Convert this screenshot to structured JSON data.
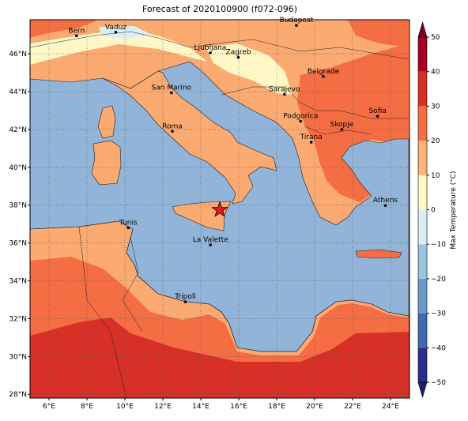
{
  "title": "Forecast of 2020100900 (f072-096)",
  "map": {
    "xlim": [
      5,
      25
    ],
    "ylim": [
      27.8,
      47.8
    ],
    "xticks": [
      {
        "value": 6,
        "label": "6°E"
      },
      {
        "value": 8,
        "label": "8°E"
      },
      {
        "value": 10,
        "label": "10°E"
      },
      {
        "value": 12,
        "label": "12°E"
      },
      {
        "value": 14,
        "label": "14°E"
      },
      {
        "value": 16,
        "label": "16°E"
      },
      {
        "value": 18,
        "label": "18°E"
      },
      {
        "value": 20,
        "label": "20°E"
      },
      {
        "value": 22,
        "label": "22°E"
      },
      {
        "value": 24,
        "label": "24°E"
      }
    ],
    "yticks": [
      {
        "value": 28,
        "label": "28°N"
      },
      {
        "value": 30,
        "label": "30°N"
      },
      {
        "value": 32,
        "label": "32°N"
      },
      {
        "value": 34,
        "label": "34°N"
      },
      {
        "value": 36,
        "label": "36°N"
      },
      {
        "value": 38,
        "label": "38°N"
      },
      {
        "value": 40,
        "label": "40°N"
      },
      {
        "value": 42,
        "label": "42°N"
      },
      {
        "value": 44,
        "label": "44°N"
      },
      {
        "value": 46,
        "label": "46°N"
      }
    ],
    "grid": true,
    "cities": [
      {
        "name": "Bern",
        "lon": 7.45,
        "lat": 46.95
      },
      {
        "name": "Vaduz",
        "lon": 9.52,
        "lat": 47.14
      },
      {
        "name": "Budapest",
        "lon": 19.04,
        "lat": 47.5
      },
      {
        "name": "Ljubljana",
        "lon": 14.5,
        "lat": 46.05
      },
      {
        "name": "Zagreb",
        "lon": 15.98,
        "lat": 45.81
      },
      {
        "name": "Belgrade",
        "lon": 20.46,
        "lat": 44.8
      },
      {
        "name": "San Marino",
        "lon": 12.45,
        "lat": 43.94
      },
      {
        "name": "Sarajevo",
        "lon": 18.41,
        "lat": 43.86
      },
      {
        "name": "Roma",
        "lon": 12.5,
        "lat": 41.9
      },
      {
        "name": "Podgorica",
        "lon": 19.26,
        "lat": 42.44
      },
      {
        "name": "Sofia",
        "lon": 23.32,
        "lat": 42.7
      },
      {
        "name": "Skopje",
        "lon": 21.43,
        "lat": 42.0
      },
      {
        "name": "Tirana",
        "lon": 19.82,
        "lat": 41.33
      },
      {
        "name": "Athens",
        "lon": 23.73,
        "lat": 37.98
      },
      {
        "name": "Tunis",
        "lon": 10.18,
        "lat": 36.8
      },
      {
        "name": "La Valette",
        "lon": 14.51,
        "lat": 35.9
      },
      {
        "name": "Tripoli",
        "lon": 13.19,
        "lat": 32.89
      }
    ],
    "marker": {
      "lon": 15.0,
      "lat": 37.75,
      "color": "#e41a1c"
    }
  },
  "colorbar": {
    "label": "Max Temperature (°C)",
    "ticks": [
      {
        "value": -50,
        "label": "−50"
      },
      {
        "value": -40,
        "label": "−40"
      },
      {
        "value": -30,
        "label": "−30"
      },
      {
        "value": -20,
        "label": "−20"
      },
      {
        "value": -10,
        "label": "−10"
      },
      0,
      10,
      20,
      30,
      40,
      50
    ],
    "colors": [
      "#2b2d8f",
      "#4169b0",
      "#6a9bc8",
      "#9ac5df",
      "#daeef4",
      "#fff8c6",
      "#fdb27a",
      "#f46d43",
      "#d73027",
      "#a50026"
    ],
    "under": "#1f1f70",
    "over": "#7a0020"
  }
}
